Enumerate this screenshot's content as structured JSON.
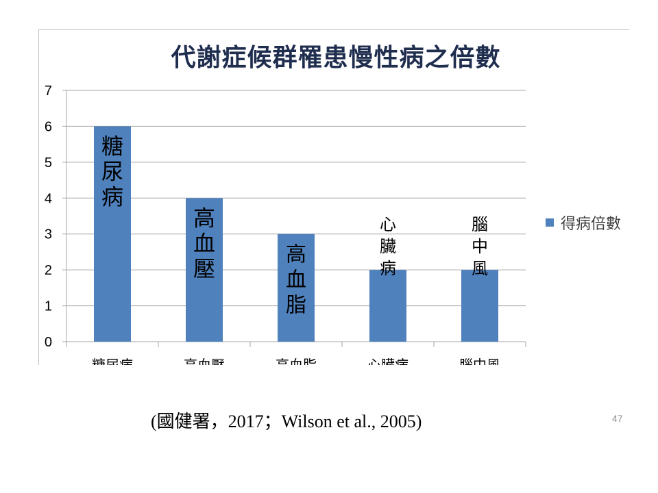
{
  "chart_data": {
    "type": "bar",
    "title": "代謝症候群罹患慢性病之倍數",
    "categories": [
      "糖尿病",
      "高血壓",
      "高血脂",
      "心臟病",
      "腦中風"
    ],
    "series": [
      {
        "name": "得病倍數",
        "values": [
          6,
          4,
          3,
          2,
          2
        ]
      }
    ],
    "bar_labels": [
      "糖尿病",
      "高血壓",
      "高血脂",
      "心臟病",
      "腦中風"
    ],
    "ylim": [
      0,
      7
    ],
    "yticks": [
      0,
      1,
      2,
      3,
      4,
      5,
      6,
      7
    ],
    "grid": true,
    "legend_position": "right",
    "colors": {
      "bar": "#4f81bd",
      "grid": "#a6a6a6",
      "title": "#1f2d4e"
    }
  },
  "source_note": "(國健署，2017；Wilson et al., 2005)",
  "page_number": "47"
}
